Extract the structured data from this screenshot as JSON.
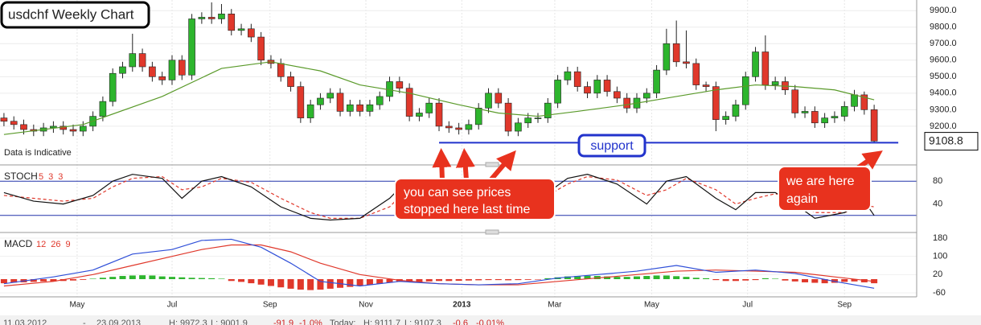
{
  "chart_data": {
    "type": "candlestick",
    "title": "usdchf Weekly Chart",
    "note": "Data is Indicative",
    "colors": {
      "up": "#2db52d",
      "down": "#e0382b"
    },
    "open": [
      9250,
      9230,
      9210,
      9180,
      9170,
      9190,
      9200,
      9180,
      9170,
      9200,
      9260,
      9350,
      9520,
      9560,
      9640,
      9560,
      9500,
      9480,
      9600,
      9510,
      9850,
      9860,
      9850,
      9880,
      9780,
      9790,
      9740,
      9600,
      9580,
      9500,
      9440,
      9250,
      9330,
      9370,
      9400,
      9290,
      9330,
      9290,
      9330,
      9380,
      9470,
      9430,
      9260,
      9280,
      9340,
      9200,
      9190,
      9180,
      9210,
      9310,
      9400,
      9340,
      9170,
      9220,
      9250,
      9250,
      9340,
      9480,
      9530,
      9440,
      9400,
      9480,
      9410,
      9370,
      9310,
      9370,
      9400,
      9540,
      9700,
      9590,
      9580,
      9450,
      9440,
      9240,
      9260,
      9330,
      9500,
      9650,
      9450,
      9470,
      9420,
      9280,
      9290,
      9220,
      9250,
      9260,
      9320,
      9390,
      9300
    ],
    "high": [
      9280,
      9260,
      9240,
      9210,
      9220,
      9230,
      9230,
      9210,
      9230,
      9290,
      9380,
      9550,
      9590,
      9760,
      9670,
      9590,
      9530,
      9630,
      9630,
      9880,
      9890,
      9950,
      9940,
      9910,
      9820,
      9820,
      9770,
      9630,
      9610,
      9530,
      9470,
      9360,
      9400,
      9430,
      9430,
      9360,
      9360,
      9360,
      9410,
      9500,
      9500,
      9460,
      9310,
      9370,
      9370,
      9230,
      9220,
      9240,
      9340,
      9430,
      9430,
      9370,
      9250,
      9280,
      9280,
      9370,
      9510,
      9560,
      9560,
      9470,
      9510,
      9510,
      9440,
      9400,
      9400,
      9430,
      9570,
      9790,
      9840,
      9780,
      9610,
      9470,
      9470,
      9290,
      9360,
      9530,
      9680,
      9750,
      9500,
      9500,
      9450,
      9320,
      9320,
      9280,
      9290,
      9350,
      9420,
      9410,
      9330
    ],
    "low": [
      9200,
      9180,
      9150,
      9140,
      9140,
      9160,
      9150,
      9140,
      9140,
      9170,
      9230,
      9320,
      9490,
      9530,
      9530,
      9470,
      9450,
      9450,
      9480,
      9480,
      9820,
      9820,
      9820,
      9750,
      9750,
      9710,
      9570,
      9550,
      9470,
      9410,
      9220,
      9220,
      9300,
      9340,
      9260,
      9260,
      9260,
      9260,
      9300,
      9350,
      9400,
      9230,
      9230,
      9250,
      9170,
      9160,
      9150,
      9150,
      9180,
      9280,
      9310,
      9140,
      9140,
      9190,
      9220,
      9220,
      9310,
      9450,
      9410,
      9370,
      9370,
      9380,
      9340,
      9280,
      9280,
      9340,
      9370,
      9510,
      9560,
      9550,
      9420,
      9410,
      9170,
      9210,
      9230,
      9300,
      9470,
      9420,
      9420,
      9390,
      9250,
      9250,
      9190,
      9190,
      9220,
      9230,
      9290,
      9270,
      9100
    ],
    "close": [
      9230,
      9210,
      9180,
      9170,
      9190,
      9200,
      9180,
      9170,
      9200,
      9260,
      9350,
      9520,
      9560,
      9640,
      9560,
      9500,
      9480,
      9600,
      9510,
      9850,
      9860,
      9850,
      9880,
      9780,
      9790,
      9740,
      9600,
      9580,
      9500,
      9440,
      9250,
      9330,
      9370,
      9400,
      9290,
      9330,
      9290,
      9330,
      9380,
      9470,
      9430,
      9260,
      9280,
      9340,
      9200,
      9190,
      9180,
      9210,
      9310,
      9400,
      9340,
      9170,
      9220,
      9250,
      9250,
      9340,
      9480,
      9530,
      9440,
      9400,
      9480,
      9410,
      9370,
      9310,
      9370,
      9400,
      9540,
      9700,
      9590,
      9580,
      9450,
      9440,
      9240,
      9260,
      9330,
      9500,
      9650,
      9450,
      9470,
      9420,
      9280,
      9290,
      9220,
      9250,
      9260,
      9320,
      9390,
      9300,
      9110
    ],
    "xlim": [
      -0.4,
      92.3
    ],
    "xticks": [
      {
        "value": 7.4,
        "label": "May"
      },
      {
        "value": 17,
        "label": "Jul"
      },
      {
        "value": 26.9,
        "label": "Sep"
      },
      {
        "value": 36.6,
        "label": "Nov"
      },
      {
        "value": 46.3,
        "label": "2013"
      },
      {
        "value": 55.7,
        "label": "Mar"
      },
      {
        "value": 65.5,
        "label": "May"
      },
      {
        "value": 75.2,
        "label": "Jul"
      },
      {
        "value": 85,
        "label": "Sep"
      }
    ],
    "ylim": [
      8990,
      9940
    ],
    "yticks": [
      {
        "value": 9200,
        "label": "9200.0"
      },
      {
        "value": 9300,
        "label": "9300.0"
      },
      {
        "value": 9400,
        "label": "9400.0"
      },
      {
        "value": 9500,
        "label": "9500.0"
      },
      {
        "value": 9600,
        "label": "9600.0"
      },
      {
        "value": 9700,
        "label": "9700.0"
      },
      {
        "value": 9800,
        "label": "9800.0"
      },
      {
        "value": 9900,
        "label": "9900.0"
      }
    ],
    "moving_average": {
      "color": "#5a9a2a",
      "x": [
        0,
        8,
        16,
        22,
        27,
        32,
        36,
        41,
        46,
        50,
        54,
        58,
        63,
        68,
        72,
        76,
        80,
        84,
        88
      ],
      "values": [
        9150,
        9210,
        9380,
        9550,
        9590,
        9535,
        9450,
        9400,
        9330,
        9280,
        9260,
        9290,
        9330,
        9380,
        9420,
        9450,
        9440,
        9420,
        9360
      ]
    },
    "current_price": 9108.8,
    "support": {
      "label": "support",
      "value": 9100,
      "from": 44,
      "to": 88,
      "color": "#2233cc"
    },
    "annotations": [
      {
        "lines": [
          "you can see prices",
          "stopped here last time"
        ]
      },
      {
        "lines": [
          "we are here",
          "again"
        ]
      }
    ],
    "stochastic": {
      "title": "STOCH",
      "params": [
        5,
        3,
        3
      ],
      "ylim": [
        0,
        100
      ],
      "yticks": [
        80,
        40
      ],
      "levels": [
        80,
        20
      ],
      "k": {
        "color": "#111111",
        "x": [
          0,
          3,
          6,
          9,
          11,
          13,
          16,
          18,
          20,
          22,
          25,
          28,
          31,
          33,
          36,
          39,
          41,
          43,
          46,
          49,
          51,
          55,
          57,
          59,
          62,
          65,
          67,
          69,
          72,
          74,
          76,
          78,
          80,
          82,
          85,
          87,
          88
        ],
        "values": [
          60,
          45,
          40,
          55,
          80,
          92,
          85,
          50,
          80,
          88,
          70,
          35,
          15,
          12,
          15,
          50,
          85,
          70,
          50,
          75,
          35,
          60,
          85,
          92,
          75,
          40,
          80,
          88,
          50,
          30,
          60,
          60,
          40,
          15,
          25,
          45,
          20
        ]
      },
      "d": {
        "color": "#e0382b",
        "x": [
          0,
          3,
          6,
          9,
          11,
          13,
          16,
          18,
          20,
          22,
          25,
          28,
          31,
          33,
          36,
          39,
          41,
          43,
          46,
          49,
          51,
          55,
          57,
          59,
          62,
          65,
          67,
          69,
          72,
          74,
          76,
          78,
          80,
          82,
          85,
          87,
          88
        ],
        "values": [
          55,
          50,
          45,
          50,
          70,
          85,
          88,
          65,
          70,
          85,
          78,
          50,
          25,
          15,
          15,
          35,
          70,
          78,
          60,
          68,
          50,
          55,
          75,
          88,
          82,
          55,
          65,
          85,
          65,
          40,
          50,
          58,
          50,
          25,
          25,
          38,
          35
        ]
      }
    },
    "macd": {
      "title": "MACD",
      "params": [
        12,
        26,
        9
      ],
      "ylim": [
        -60,
        180
      ],
      "yticks": [
        180,
        100,
        20,
        -60
      ],
      "histogram": [
        -18,
        -15,
        -14,
        -12,
        -10,
        -10,
        -8,
        -6,
        -3,
        2,
        6,
        10,
        14,
        16,
        17,
        16,
        12,
        10,
        8,
        6,
        5,
        4,
        2,
        -8,
        -12,
        -18,
        -24,
        -30,
        -36,
        -42,
        -46,
        -48,
        -46,
        -42,
        -38,
        -34,
        -30,
        -25,
        -20,
        -16,
        -12,
        -10,
        -12,
        -10,
        -8,
        -8,
        -7,
        -6,
        -5,
        -4,
        -4,
        -5,
        -4,
        -3,
        -2,
        4,
        8,
        12,
        14,
        15,
        14,
        12,
        10,
        10,
        12,
        14,
        16,
        16,
        13,
        10,
        6,
        4,
        -4,
        -8,
        -8,
        -6,
        -4,
        4,
        2,
        -6,
        -10,
        -14,
        -16,
        -18,
        -16,
        -12,
        -10,
        -14,
        -18
      ],
      "macd": {
        "color": "#2f4fd8",
        "x": [
          0,
          5,
          9,
          13,
          17,
          20,
          23,
          26,
          29,
          32,
          36,
          40,
          44,
          48,
          52,
          56,
          60,
          64,
          68,
          72,
          76,
          80,
          84,
          88
        ],
        "values": [
          -20,
          10,
          40,
          110,
          130,
          170,
          175,
          140,
          70,
          -10,
          -30,
          -10,
          -20,
          -25,
          -20,
          5,
          20,
          35,
          60,
          30,
          40,
          25,
          -10,
          -40
        ]
      },
      "signal": {
        "color": "#e0382b",
        "x": [
          0,
          5,
          9,
          13,
          17,
          20,
          23,
          26,
          29,
          32,
          36,
          40,
          44,
          48,
          52,
          56,
          60,
          64,
          68,
          72,
          76,
          80,
          84,
          88
        ],
        "values": [
          -30,
          -10,
          20,
          60,
          100,
          130,
          150,
          150,
          120,
          70,
          20,
          -5,
          -20,
          -25,
          -25,
          -10,
          5,
          20,
          35,
          40,
          35,
          30,
          10,
          -10
        ]
      }
    },
    "status": [
      "11.03.2012",
      "-",
      "23.09.2013",
      "H: 9972.3",
      "L: 9001.9",
      "-91.9",
      "-1.0%",
      "Today:",
      "H: 9111.7",
      "L: 9107.3",
      "-0.6",
      "-0.01%"
    ]
  }
}
